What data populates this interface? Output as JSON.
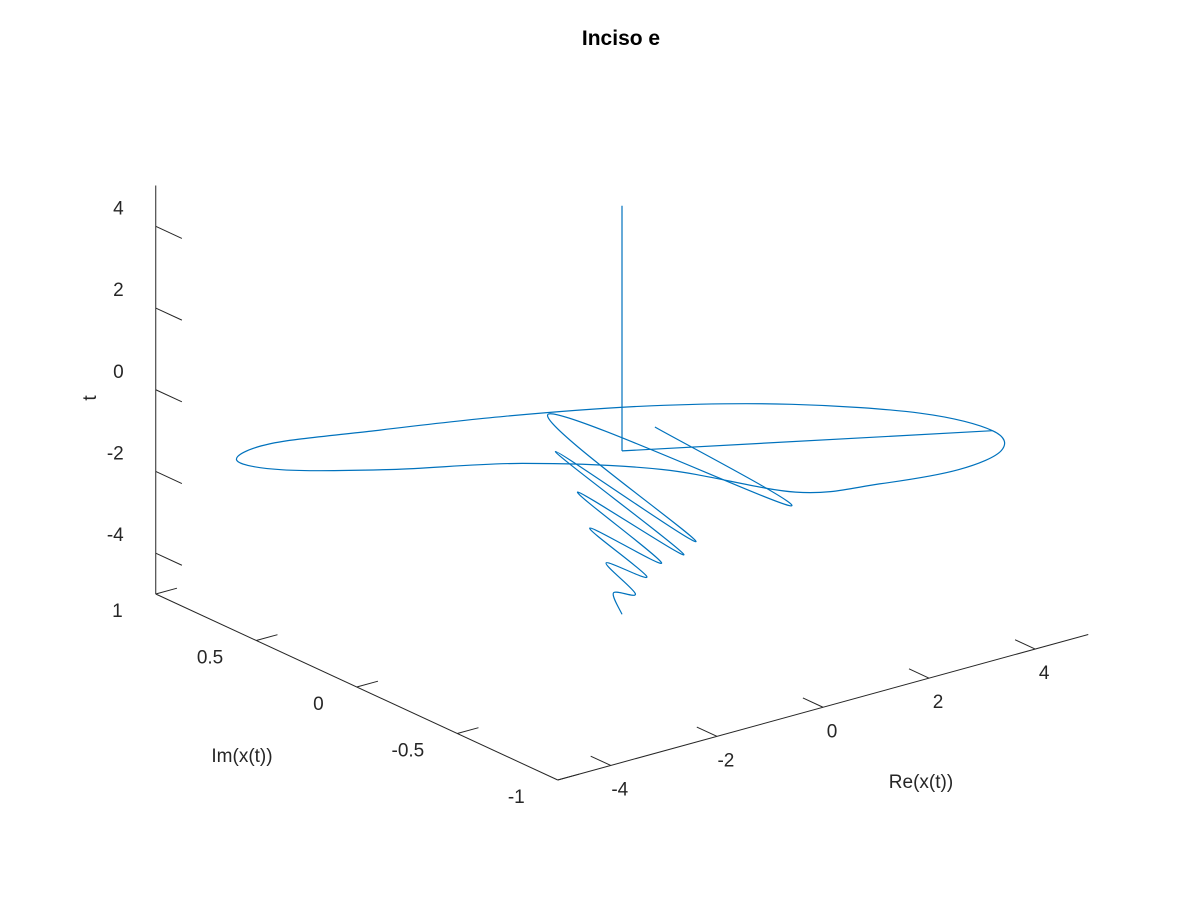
{
  "chart_data": {
    "type": "line3d",
    "title": "Inciso e",
    "xlabel": "Re(x(t))",
    "ylabel": "Im(x(t))",
    "zlabel": "t",
    "xlim": [
      -5,
      5
    ],
    "ylim": [
      -1,
      1
    ],
    "zlim": [
      -5,
      5
    ],
    "x_ticks": [
      -4,
      -2,
      0,
      2,
      4
    ],
    "x_tick_labels": [
      "-4",
      "-2",
      "0",
      "2",
      "4"
    ],
    "y_ticks": [
      -1,
      -0.5,
      0,
      0.5,
      1
    ],
    "y_tick_labels": [
      "-1",
      "-0.5",
      "0",
      "0.5",
      "1"
    ],
    "z_ticks": [
      -4,
      -2,
      0,
      2,
      4
    ],
    "z_tick_labels": [
      "-4",
      "-2",
      "0",
      "2",
      "4"
    ],
    "grid": false,
    "legend": "none",
    "view": "default 3-D view, azimuth -37.5, elevation 30",
    "series": [
      {
        "color": "#0072bd",
        "segments": [
          {
            "description": "decaying oscillation, t from -5 to -1",
            "t": [
              -5.0,
              -4.6,
              -4.3,
              -4.0,
              -3.7,
              -3.4,
              -3.1,
              -2.8,
              -2.5,
              -2.2,
              -1.9,
              -1.6,
              -1.3,
              -1.0
            ],
            "re": [
              0.0,
              0.03,
              -0.05,
              0.08,
              -0.1,
              0.15,
              -0.2,
              0.3,
              -0.35,
              0.45,
              -0.5,
              0.7,
              0.9,
              1.0
            ],
            "im": [
              0.0,
              0.05,
              -0.08,
              0.1,
              -0.15,
              0.2,
              -0.25,
              0.3,
              -0.4,
              0.45,
              -0.5,
              0.55,
              -0.6,
              0.1
            ]
          },
          {
            "description": "elliptical loop at t = -1",
            "re": [
              1.0,
              2.2,
              3.5,
              4.5,
              4.9,
              4.5,
              3.2,
              1.5,
              -0.5,
              -2.5,
              -4.0,
              -4.8,
              -4.5,
              -3.2,
              -1.5,
              0.0,
              1.0
            ],
            "im": [
              -0.6,
              -0.7,
              -0.75,
              -0.7,
              -0.55,
              -0.3,
              0.0,
              0.25,
              0.45,
              0.6,
              0.7,
              0.65,
              0.5,
              0.3,
              0.1,
              -0.2,
              -0.6
            ],
            "t": [
              -1,
              -1,
              -1,
              -1,
              -1,
              -1,
              -1,
              -1,
              -1,
              -1,
              -1,
              -1,
              -1,
              -1,
              -1,
              -1,
              -1
            ]
          },
          {
            "description": "segment back to the origin at t = -1",
            "re": [
              4.9,
              0.0
            ],
            "im": [
              -0.55,
              0.0
            ],
            "t": [
              -1,
              -1
            ]
          },
          {
            "description": "zero value, t from -1 to 5",
            "re": [
              0.0,
              0.0
            ],
            "im": [
              0.0,
              0.0
            ],
            "t": [
              -1,
              5
            ]
          }
        ]
      }
    ]
  }
}
